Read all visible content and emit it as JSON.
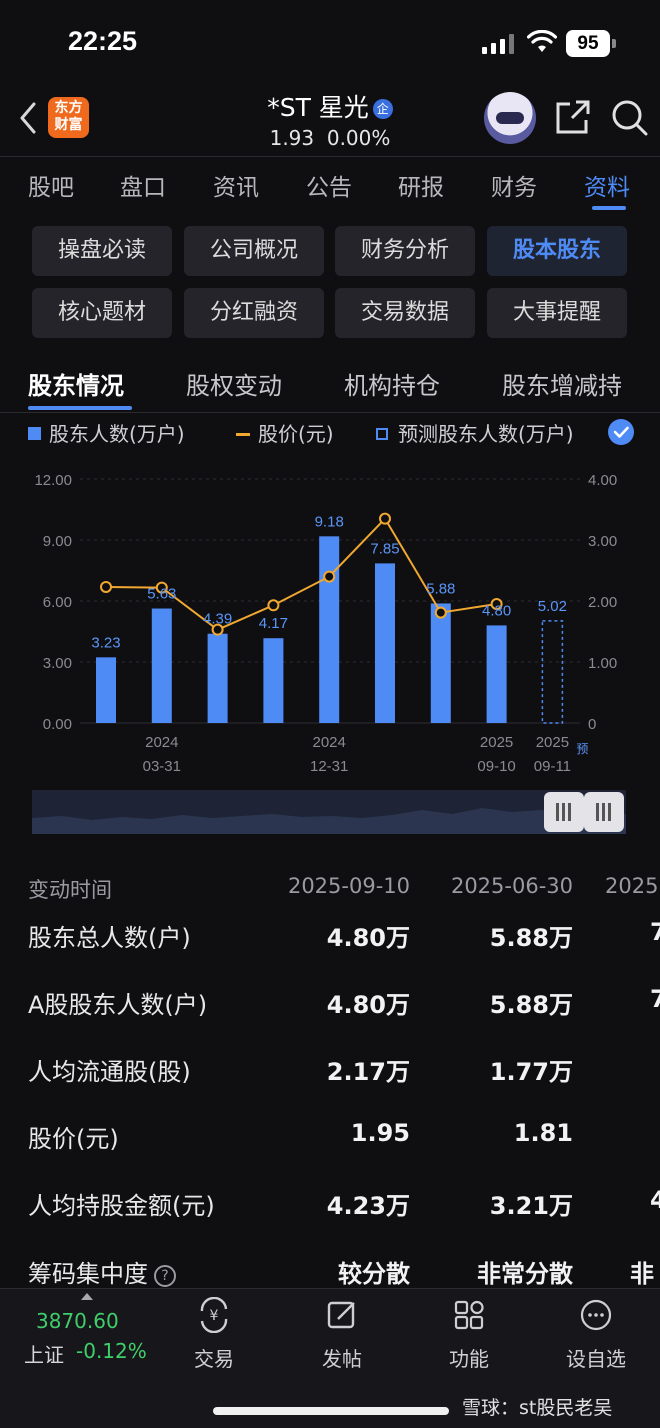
{
  "status_bar": {
    "time": "22:25",
    "battery": "95"
  },
  "header": {
    "app_logo": "东方\n财富",
    "stock_name": "*ST 星光",
    "badge": "企",
    "price": "1.93",
    "change": "0.00%"
  },
  "main_tabs": [
    {
      "label": "股吧"
    },
    {
      "label": "盘口"
    },
    {
      "label": "资讯"
    },
    {
      "label": "公告"
    },
    {
      "label": "研报"
    },
    {
      "label": "财务"
    },
    {
      "label": "资料",
      "active": true
    }
  ],
  "sub_nav": [
    {
      "label": "操盘必读"
    },
    {
      "label": "公司概况"
    },
    {
      "label": "财务分析"
    },
    {
      "label": "股本股东",
      "active": true
    },
    {
      "label": "核心题材"
    },
    {
      "label": "分红融资"
    },
    {
      "label": "交易数据"
    },
    {
      "label": "大事提醒"
    }
  ],
  "section_tabs": [
    {
      "label": "股东情况",
      "active": true
    },
    {
      "label": "股权变动"
    },
    {
      "label": "机构持仓"
    },
    {
      "label": "股东增减持"
    }
  ],
  "legend": {
    "holders": "股东人数(万户)",
    "price": "股价(元)",
    "forecast": "预测股东人数(万户)"
  },
  "chart_data": {
    "type": "bar",
    "y_left_ticks": [
      "12.00",
      "9.00",
      "6.00",
      "3.00",
      "0.00"
    ],
    "y_right_ticks": [
      "4.00",
      "3.00",
      "2.00",
      "1.00",
      "0"
    ],
    "ylim_left": [
      0,
      12
    ],
    "ylim_right": [
      0,
      4
    ],
    "holders": [
      3.23,
      5.63,
      4.39,
      4.17,
      9.18,
      7.85,
      5.88,
      4.8
    ],
    "holder_labels": [
      "3.23",
      "5.63",
      "4.39",
      "4.17",
      "9.18",
      "7.85",
      "5.88",
      "4.80"
    ],
    "price": [
      2.23,
      2.22,
      1.53,
      1.93,
      2.4,
      3.35,
      1.81,
      1.95
    ],
    "forecast_value": 5.02,
    "forecast_label": "5.02",
    "forecast_tag": "预",
    "x_labels": [
      {
        "year": "2024",
        "date": "03-31",
        "slot": 1
      },
      {
        "year": "2024",
        "date": "12-31",
        "slot": 4
      },
      {
        "year": "2025",
        "date": "09-10",
        "slot": 7
      },
      {
        "year": "2025",
        "date": "09-11",
        "slot": 8
      }
    ],
    "colors": {
      "bar": "#4f8bf5",
      "line": "#f0a830",
      "label": "#5b95f7"
    }
  },
  "table": {
    "header": {
      "label": "变动时间",
      "c1": "2025-09-10",
      "c2": "2025-06-30",
      "c3": "2025"
    },
    "rows": [
      {
        "label": "股东总人数(户)",
        "c1": "4.80万",
        "c2": "5.88万",
        "c3": "7"
      },
      {
        "label": "A股股东人数(户)",
        "c1": "4.80万",
        "c2": "5.88万",
        "c3": "7"
      },
      {
        "label": "人均流通股(股)",
        "c1": "2.17万",
        "c2": "1.77万",
        "c3": ""
      },
      {
        "label": "股价(元)",
        "c1": "1.95",
        "c2": "1.81",
        "c3": ""
      },
      {
        "label": "人均持股金额(元)",
        "c1": "4.23万",
        "c2": "3.21万",
        "c3": "4"
      },
      {
        "label": "筹码集中度",
        "c1": "较分散",
        "c2": "非常分散",
        "c3": "非"
      }
    ]
  },
  "bottom_bar": {
    "index_value": "3870.60",
    "index_name": "上证",
    "index_change": "-0.12%",
    "buttons": [
      {
        "label": "交易"
      },
      {
        "label": "发帖"
      },
      {
        "label": "功能"
      },
      {
        "label": "设自选"
      }
    ],
    "watermark": "雪球：st股民老吴"
  }
}
